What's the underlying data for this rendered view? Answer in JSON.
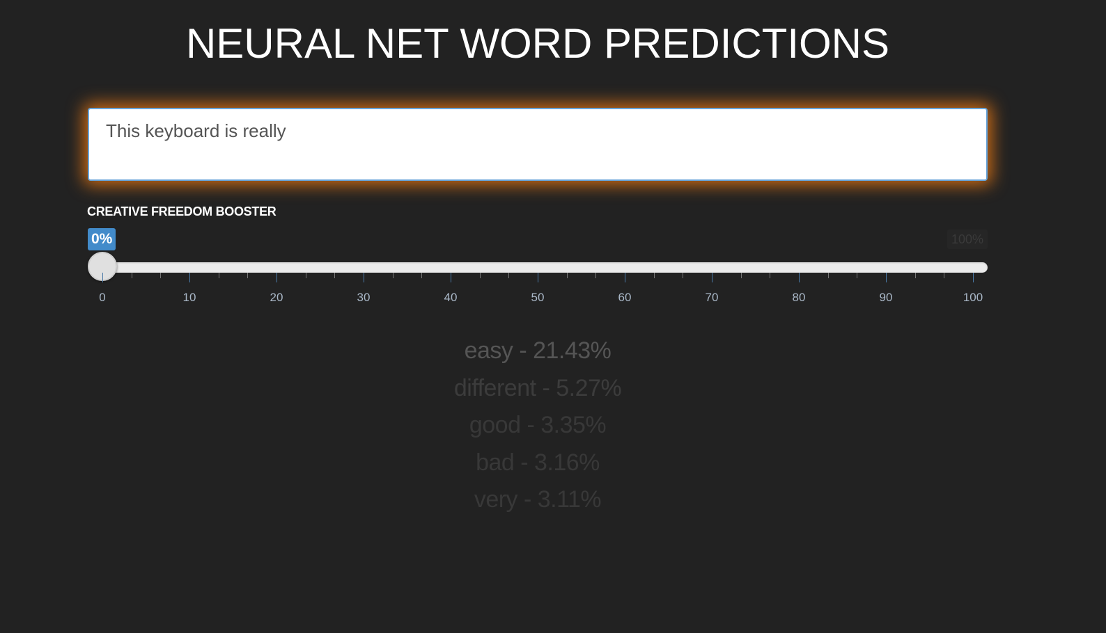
{
  "title": "NEURAL NET WORD PREDICTIONS",
  "input": {
    "value": "This keyboard is really"
  },
  "slider": {
    "label": "CREATIVE FREEDOM BOOSTER",
    "value_label": "0%",
    "max_label": "100%",
    "value": 0,
    "min": 0,
    "max": 100,
    "tick_labels": [
      "0",
      "10",
      "20",
      "30",
      "40",
      "50",
      "60",
      "70",
      "80",
      "90",
      "100"
    ]
  },
  "predictions": [
    {
      "text": "easy - 21.43%",
      "color": "#555555"
    },
    {
      "text": "different - 5.27%",
      "color": "#3c3c3c"
    },
    {
      "text": "good - 3.35%",
      "color": "#383838"
    },
    {
      "text": "bad - 3.16%",
      "color": "#383838"
    },
    {
      "text": "very - 3.11%",
      "color": "#383838"
    }
  ],
  "colors": {
    "background": "#222222",
    "accent": "#428bca",
    "glow": "#e87814"
  }
}
